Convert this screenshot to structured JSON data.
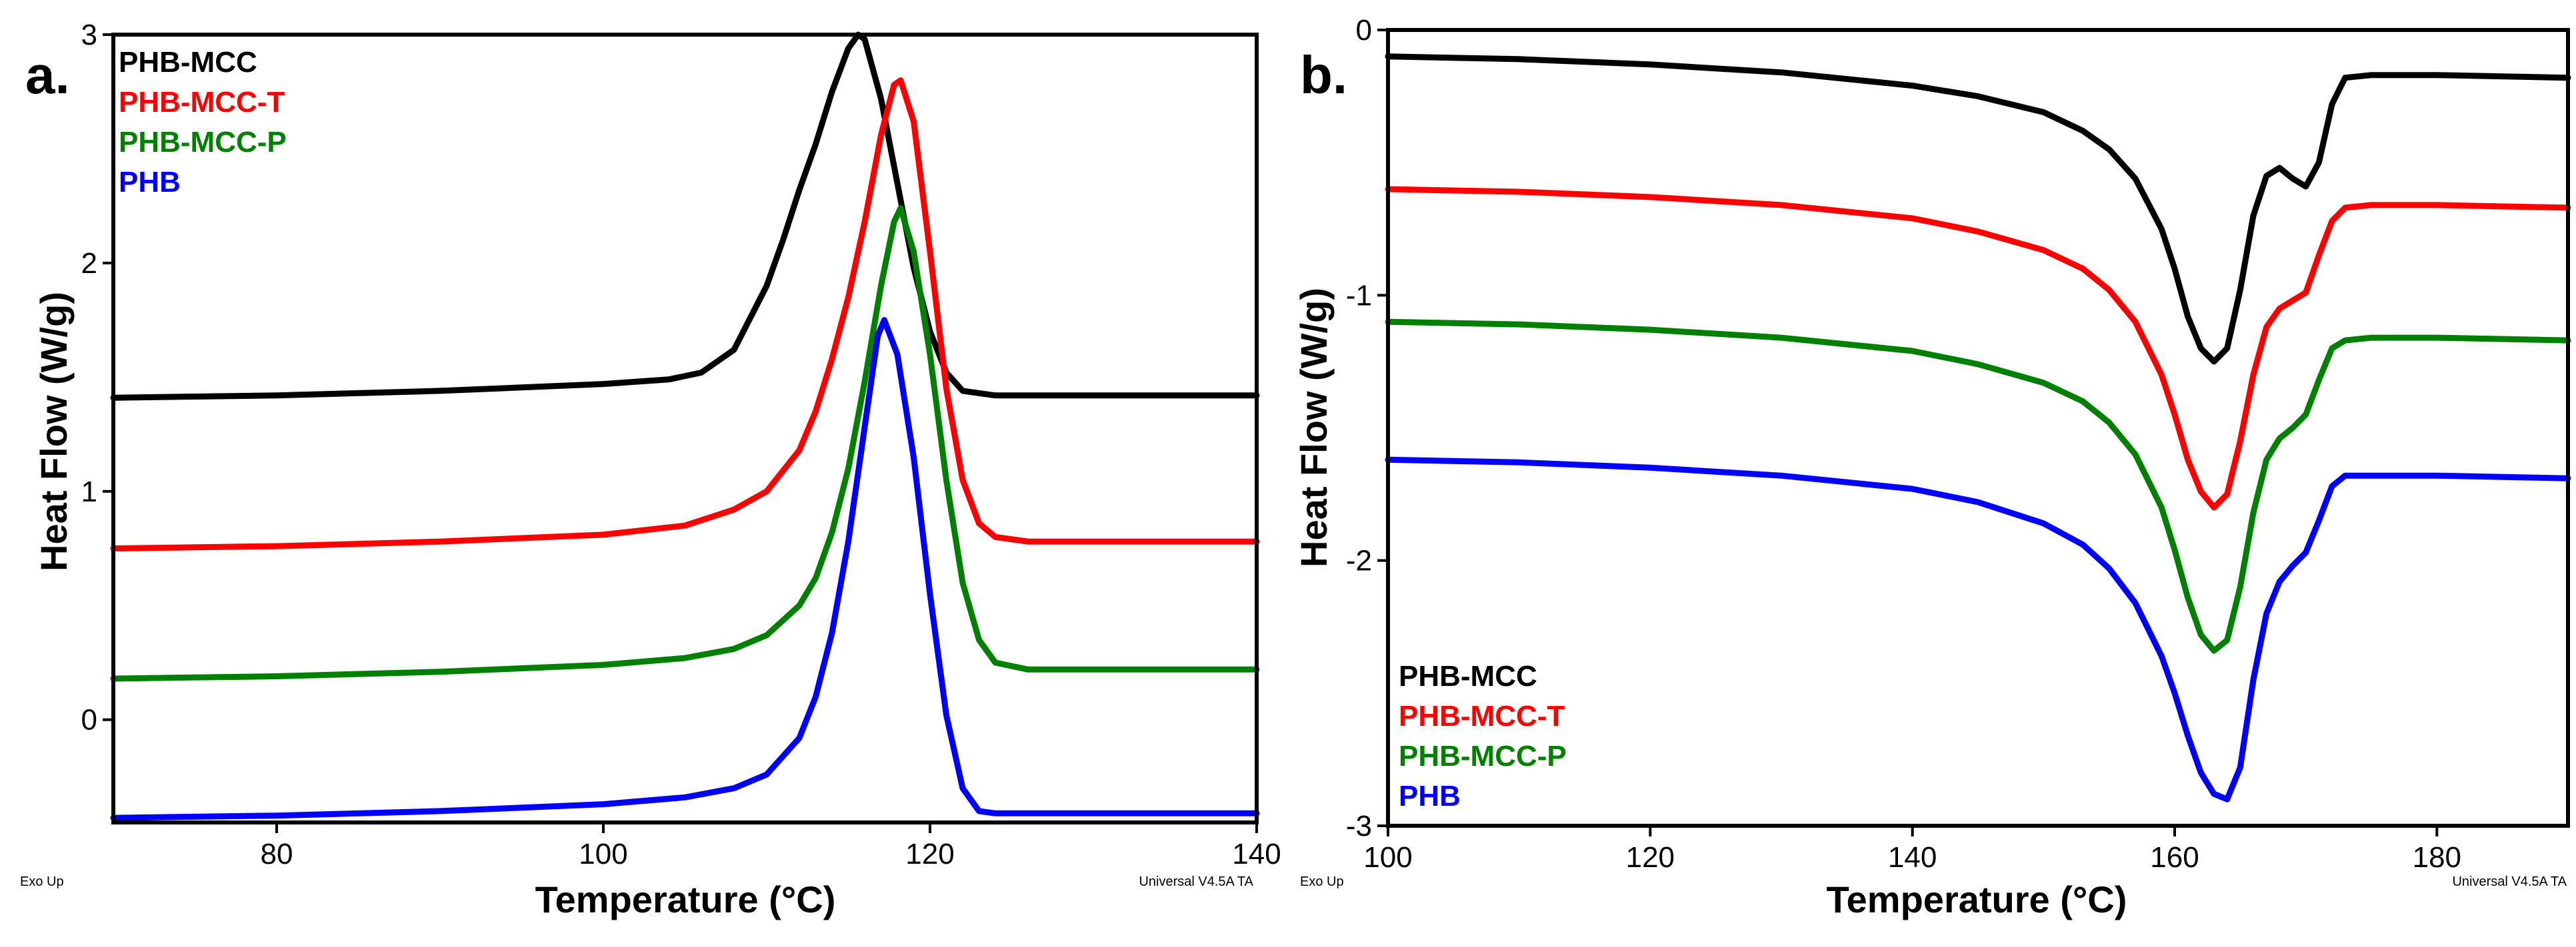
{
  "chart_data": [
    {
      "type": "line",
      "panel_label": "a.",
      "xlabel": "Temperature (°C)",
      "ylabel": "Heat Flow (W/g)",
      "xlim": [
        70,
        140
      ],
      "ylim": [
        -0.45,
        3
      ],
      "x_ticks": [
        80,
        100,
        120,
        140
      ],
      "y_ticks": [
        0,
        1,
        2,
        3
      ],
      "legend_position": "top-left",
      "footer_left": "Exo Up",
      "footer_right": "Universal V4.5A TA",
      "series": [
        {
          "name": "PHB-MCC",
          "color": "#000000",
          "points": [
            [
              70,
              1.41
            ],
            [
              80,
              1.42
            ],
            [
              90,
              1.44
            ],
            [
              100,
              1.47
            ],
            [
              104,
              1.49
            ],
            [
              106,
              1.52
            ],
            [
              108,
              1.62
            ],
            [
              110,
              1.9
            ],
            [
              111,
              2.1
            ],
            [
              112,
              2.32
            ],
            [
              113,
              2.52
            ],
            [
              114,
              2.75
            ],
            [
              115,
              2.94
            ],
            [
              115.6,
              3.0
            ],
            [
              116,
              2.98
            ],
            [
              117,
              2.72
            ],
            [
              118,
              2.35
            ],
            [
              119,
              1.98
            ],
            [
              120,
              1.7
            ],
            [
              121,
              1.52
            ],
            [
              122,
              1.44
            ],
            [
              124,
              1.42
            ],
            [
              130,
              1.42
            ],
            [
              140,
              1.42
            ]
          ]
        },
        {
          "name": "PHB-MCC-T",
          "color": "#ff0000",
          "points": [
            [
              70,
              0.75
            ],
            [
              80,
              0.76
            ],
            [
              90,
              0.78
            ],
            [
              100,
              0.81
            ],
            [
              105,
              0.85
            ],
            [
              108,
              0.92
            ],
            [
              110,
              1.0
            ],
            [
              112,
              1.18
            ],
            [
              113,
              1.35
            ],
            [
              114,
              1.58
            ],
            [
              115,
              1.85
            ],
            [
              116,
              2.18
            ],
            [
              117,
              2.56
            ],
            [
              117.8,
              2.78
            ],
            [
              118.2,
              2.8
            ],
            [
              119,
              2.62
            ],
            [
              120,
              2.05
            ],
            [
              121,
              1.45
            ],
            [
              122,
              1.05
            ],
            [
              123,
              0.86
            ],
            [
              124,
              0.8
            ],
            [
              126,
              0.78
            ],
            [
              140,
              0.78
            ]
          ]
        },
        {
          "name": "PHB-MCC-P",
          "color": "#008000",
          "points": [
            [
              70,
              0.18
            ],
            [
              80,
              0.19
            ],
            [
              90,
              0.21
            ],
            [
              100,
              0.24
            ],
            [
              105,
              0.27
            ],
            [
              108,
              0.31
            ],
            [
              110,
              0.37
            ],
            [
              112,
              0.5
            ],
            [
              113,
              0.62
            ],
            [
              114,
              0.82
            ],
            [
              115,
              1.1
            ],
            [
              116,
              1.48
            ],
            [
              117,
              1.9
            ],
            [
              117.8,
              2.18
            ],
            [
              118.2,
              2.24
            ],
            [
              119,
              2.05
            ],
            [
              120,
              1.6
            ],
            [
              121,
              1.05
            ],
            [
              122,
              0.6
            ],
            [
              123,
              0.35
            ],
            [
              124,
              0.25
            ],
            [
              126,
              0.22
            ],
            [
              140,
              0.22
            ]
          ]
        },
        {
          "name": "PHB",
          "color": "#0000ff",
          "points": [
            [
              70,
              -0.43
            ],
            [
              80,
              -0.42
            ],
            [
              90,
              -0.4
            ],
            [
              100,
              -0.37
            ],
            [
              105,
              -0.34
            ],
            [
              108,
              -0.3
            ],
            [
              110,
              -0.24
            ],
            [
              112,
              -0.08
            ],
            [
              113,
              0.1
            ],
            [
              114,
              0.38
            ],
            [
              115,
              0.78
            ],
            [
              116,
              1.28
            ],
            [
              116.8,
              1.68
            ],
            [
              117.2,
              1.75
            ],
            [
              118,
              1.6
            ],
            [
              119,
              1.15
            ],
            [
              120,
              0.55
            ],
            [
              121,
              0.02
            ],
            [
              122,
              -0.3
            ],
            [
              123,
              -0.4
            ],
            [
              124,
              -0.41
            ],
            [
              126,
              -0.41
            ],
            [
              140,
              -0.41
            ]
          ]
        }
      ]
    },
    {
      "type": "line",
      "panel_label": "b.",
      "xlabel": "Temperature (°C)",
      "ylabel": "Heat Flow (W/g)",
      "xlim": [
        100,
        190
      ],
      "ylim": [
        -3,
        0
      ],
      "x_ticks": [
        100,
        120,
        140,
        160,
        180
      ],
      "y_ticks": [
        0,
        -1,
        -2,
        -3
      ],
      "legend_position": "bottom-left",
      "footer_left": "Exo Up",
      "footer_right": "Universal V4.5A TA",
      "series": [
        {
          "name": "PHB-MCC",
          "color": "#000000",
          "points": [
            [
              100,
              -0.1
            ],
            [
              110,
              -0.11
            ],
            [
              120,
              -0.13
            ],
            [
              130,
              -0.16
            ],
            [
              140,
              -0.21
            ],
            [
              145,
              -0.25
            ],
            [
              150,
              -0.31
            ],
            [
              153,
              -0.38
            ],
            [
              155,
              -0.45
            ],
            [
              157,
              -0.56
            ],
            [
              159,
              -0.75
            ],
            [
              160,
              -0.9
            ],
            [
              161,
              -1.08
            ],
            [
              162,
              -1.2
            ],
            [
              163,
              -1.25
            ],
            [
              164,
              -1.2
            ],
            [
              165,
              -0.98
            ],
            [
              166,
              -0.7
            ],
            [
              167,
              -0.55
            ],
            [
              168,
              -0.52
            ],
            [
              169,
              -0.56
            ],
            [
              170,
              -0.59
            ],
            [
              171,
              -0.5
            ],
            [
              172,
              -0.28
            ],
            [
              173,
              -0.18
            ],
            [
              175,
              -0.17
            ],
            [
              180,
              -0.17
            ],
            [
              190,
              -0.18
            ]
          ]
        },
        {
          "name": "PHB-MCC-T",
          "color": "#ff0000",
          "points": [
            [
              100,
              -0.6
            ],
            [
              110,
              -0.61
            ],
            [
              120,
              -0.63
            ],
            [
              130,
              -0.66
            ],
            [
              140,
              -0.71
            ],
            [
              145,
              -0.76
            ],
            [
              150,
              -0.83
            ],
            [
              153,
              -0.9
            ],
            [
              155,
              -0.98
            ],
            [
              157,
              -1.1
            ],
            [
              159,
              -1.3
            ],
            [
              160,
              -1.45
            ],
            [
              161,
              -1.62
            ],
            [
              162,
              -1.74
            ],
            [
              163,
              -1.8
            ],
            [
              164,
              -1.75
            ],
            [
              165,
              -1.55
            ],
            [
              166,
              -1.3
            ],
            [
              167,
              -1.12
            ],
            [
              168,
              -1.05
            ],
            [
              169,
              -1.02
            ],
            [
              170,
              -0.99
            ],
            [
              171,
              -0.85
            ],
            [
              172,
              -0.72
            ],
            [
              173,
              -0.67
            ],
            [
              175,
              -0.66
            ],
            [
              180,
              -0.66
            ],
            [
              190,
              -0.67
            ]
          ]
        },
        {
          "name": "PHB-MCC-P",
          "color": "#008000",
          "points": [
            [
              100,
              -1.1
            ],
            [
              110,
              -1.11
            ],
            [
              120,
              -1.13
            ],
            [
              130,
              -1.16
            ],
            [
              140,
              -1.21
            ],
            [
              145,
              -1.26
            ],
            [
              150,
              -1.33
            ],
            [
              153,
              -1.4
            ],
            [
              155,
              -1.48
            ],
            [
              157,
              -1.6
            ],
            [
              159,
              -1.8
            ],
            [
              160,
              -1.96
            ],
            [
              161,
              -2.14
            ],
            [
              162,
              -2.28
            ],
            [
              163,
              -2.34
            ],
            [
              164,
              -2.3
            ],
            [
              165,
              -2.1
            ],
            [
              166,
              -1.82
            ],
            [
              167,
              -1.62
            ],
            [
              168,
              -1.54
            ],
            [
              169,
              -1.5
            ],
            [
              170,
              -1.45
            ],
            [
              171,
              -1.32
            ],
            [
              172,
              -1.2
            ],
            [
              173,
              -1.17
            ],
            [
              175,
              -1.16
            ],
            [
              180,
              -1.16
            ],
            [
              190,
              -1.17
            ]
          ]
        },
        {
          "name": "PHB",
          "color": "#0000ff",
          "points": [
            [
              100,
              -1.62
            ],
            [
              110,
              -1.63
            ],
            [
              120,
              -1.65
            ],
            [
              130,
              -1.68
            ],
            [
              140,
              -1.73
            ],
            [
              145,
              -1.78
            ],
            [
              150,
              -1.86
            ],
            [
              153,
              -1.94
            ],
            [
              155,
              -2.03
            ],
            [
              157,
              -2.16
            ],
            [
              159,
              -2.36
            ],
            [
              160,
              -2.5
            ],
            [
              161,
              -2.66
            ],
            [
              162,
              -2.8
            ],
            [
              163,
              -2.88
            ],
            [
              164,
              -2.9
            ],
            [
              165,
              -2.78
            ],
            [
              166,
              -2.45
            ],
            [
              167,
              -2.2
            ],
            [
              168,
              -2.08
            ],
            [
              169,
              -2.02
            ],
            [
              170,
              -1.97
            ],
            [
              171,
              -1.85
            ],
            [
              172,
              -1.72
            ],
            [
              173,
              -1.68
            ],
            [
              175,
              -1.68
            ],
            [
              180,
              -1.68
            ],
            [
              190,
              -1.69
            ]
          ]
        }
      ]
    }
  ]
}
